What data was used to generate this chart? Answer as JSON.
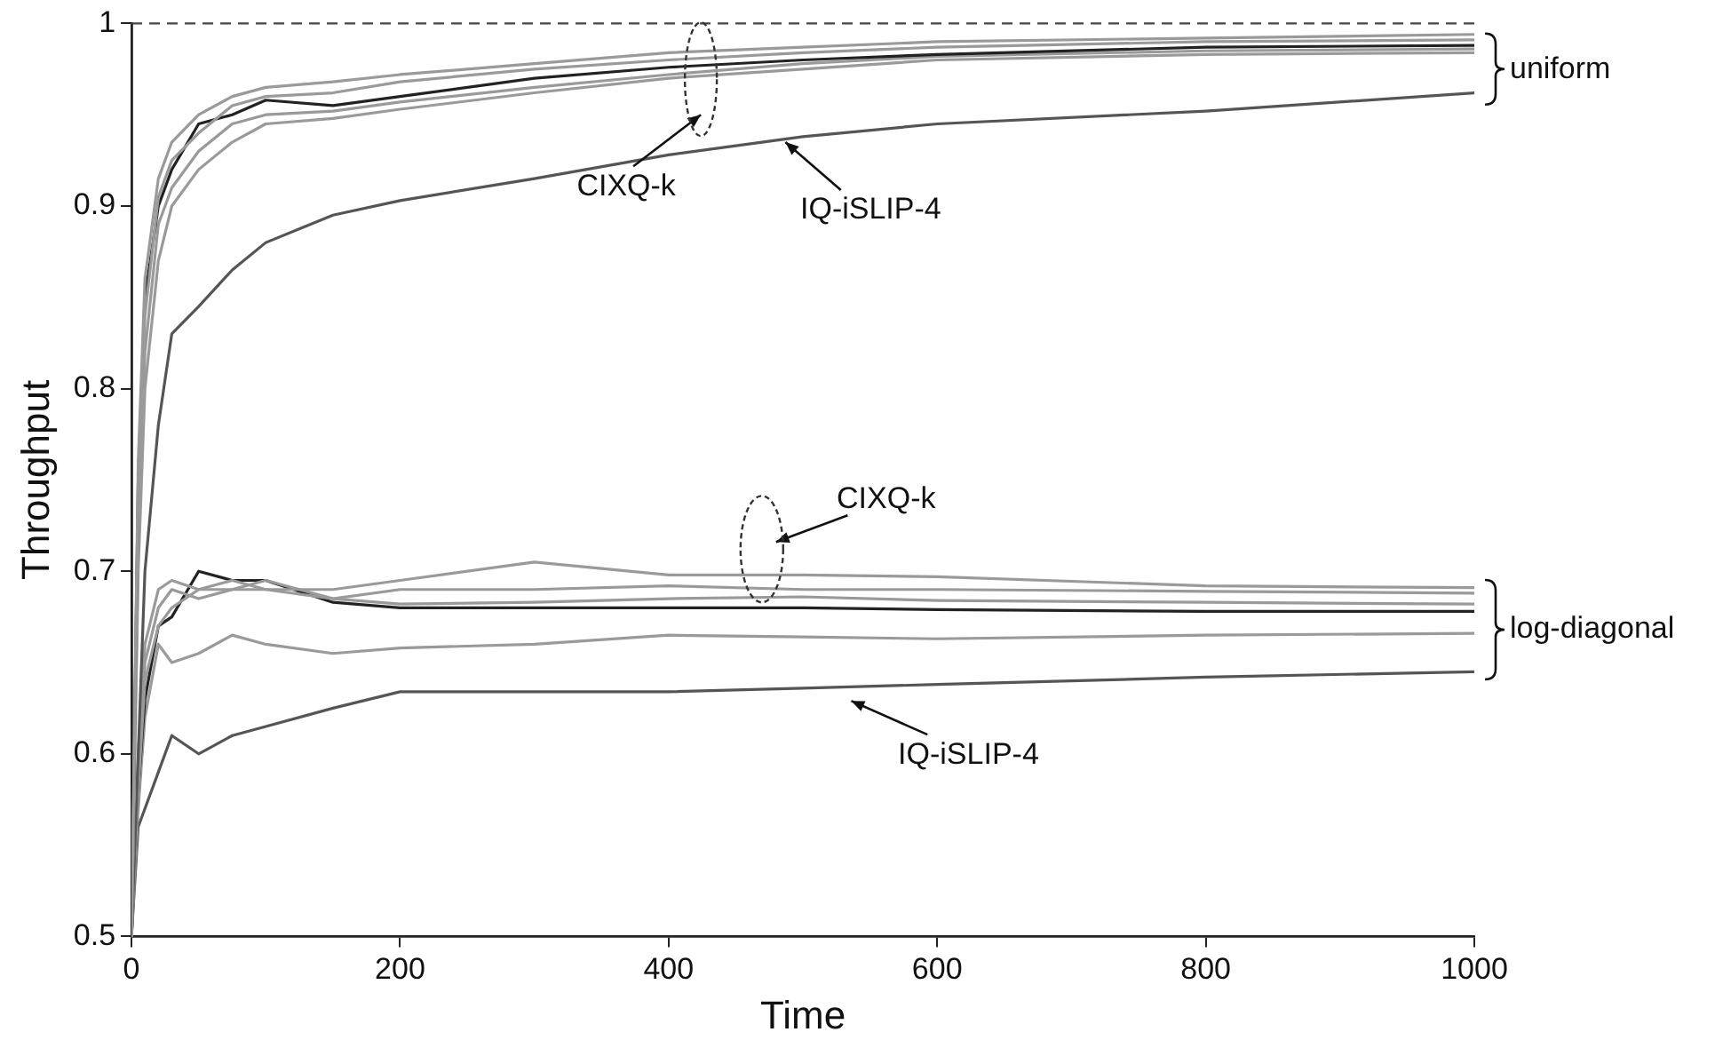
{
  "chart_data": {
    "type": "line",
    "xlabel": "Time",
    "ylabel": "Throughput",
    "x": [
      0,
      5,
      10,
      20,
      30,
      50,
      75,
      100,
      150,
      200,
      300,
      400,
      500,
      600,
      800,
      1000
    ],
    "series": [
      {
        "color": "#9a9a9a",
        "values": [
          0.5,
          0.76,
          0.86,
          0.915,
          0.935,
          0.95,
          0.96,
          0.965,
          0.968,
          0.972,
          0.978,
          0.984,
          0.987,
          0.99,
          0.992,
          0.994
        ]
      },
      {
        "color": "#9a9a9a",
        "values": [
          0.5,
          0.74,
          0.84,
          0.905,
          0.925,
          0.94,
          0.955,
          0.96,
          0.962,
          0.968,
          0.975,
          0.98,
          0.984,
          0.987,
          0.99,
          0.991
        ]
      },
      {
        "color": "#222222",
        "values": [
          0.5,
          0.75,
          0.85,
          0.9,
          0.92,
          0.945,
          0.95,
          0.958,
          0.955,
          0.96,
          0.97,
          0.976,
          0.98,
          0.983,
          0.987,
          0.988
        ]
      },
      {
        "color": "#9a9a9a",
        "values": [
          0.5,
          0.72,
          0.82,
          0.89,
          0.91,
          0.93,
          0.945,
          0.95,
          0.952,
          0.957,
          0.965,
          0.972,
          0.978,
          0.982,
          0.985,
          0.986
        ]
      },
      {
        "color": "#9a9a9a",
        "values": [
          0.5,
          0.7,
          0.8,
          0.87,
          0.9,
          0.92,
          0.935,
          0.945,
          0.948,
          0.953,
          0.962,
          0.97,
          0.975,
          0.98,
          0.983,
          0.984
        ]
      },
      {
        "color": "#555555",
        "values": [
          0.5,
          0.6,
          0.7,
          0.78,
          0.83,
          0.845,
          0.865,
          0.88,
          0.895,
          0.903,
          0.915,
          0.928,
          0.938,
          0.945,
          0.952,
          0.962
        ]
      },
      {
        "color": "#9a9a9a",
        "values": [
          0.5,
          0.6,
          0.66,
          0.69,
          0.695,
          0.69,
          0.695,
          0.69,
          0.69,
          0.695,
          0.705,
          0.698,
          0.698,
          0.697,
          0.692,
          0.691
        ]
      },
      {
        "color": "#9a9a9a",
        "values": [
          0.5,
          0.59,
          0.65,
          0.68,
          0.69,
          0.685,
          0.69,
          0.69,
          0.685,
          0.69,
          0.69,
          0.692,
          0.69,
          0.69,
          0.689,
          0.688
        ]
      },
      {
        "color": "#9a9a9a",
        "values": [
          0.5,
          0.58,
          0.64,
          0.67,
          0.68,
          0.69,
          0.69,
          0.695,
          0.685,
          0.682,
          0.683,
          0.685,
          0.686,
          0.684,
          0.683,
          0.682
        ]
      },
      {
        "color": "#222222",
        "values": [
          0.5,
          0.58,
          0.63,
          0.67,
          0.675,
          0.7,
          0.695,
          0.695,
          0.683,
          0.68,
          0.68,
          0.68,
          0.68,
          0.679,
          0.678,
          0.678
        ]
      },
      {
        "color": "#9a9a9a",
        "values": [
          0.5,
          0.57,
          0.62,
          0.66,
          0.65,
          0.655,
          0.665,
          0.66,
          0.655,
          0.658,
          0.66,
          0.665,
          0.664,
          0.663,
          0.665,
          0.666
        ]
      },
      {
        "color": "#555555",
        "values": [
          0.5,
          0.56,
          0.57,
          0.59,
          0.61,
          0.6,
          0.61,
          0.615,
          0.625,
          0.634,
          0.634,
          0.634,
          0.636,
          0.638,
          0.642,
          0.645
        ]
      }
    ],
    "xlim": [
      0,
      1000
    ],
    "xticks": [
      0,
      200,
      400,
      600,
      800,
      1000
    ],
    "ylim": [
      0.5,
      1
    ],
    "yticks": [
      0.5,
      0.6,
      0.7,
      0.8,
      0.9,
      1
    ],
    "grid": false,
    "legend": false,
    "marker": "none",
    "line_style": "solid",
    "ref_lines": [
      {
        "axis": "y",
        "value": 1,
        "color": "#444444",
        "line_style": "dashed"
      }
    ],
    "annotations": [
      "CIXQ-k",
      "IQ-iSLIP-4",
      "CIXQ-k",
      "IQ-iSLIP-4",
      "uniform",
      "log-diagonal"
    ]
  }
}
